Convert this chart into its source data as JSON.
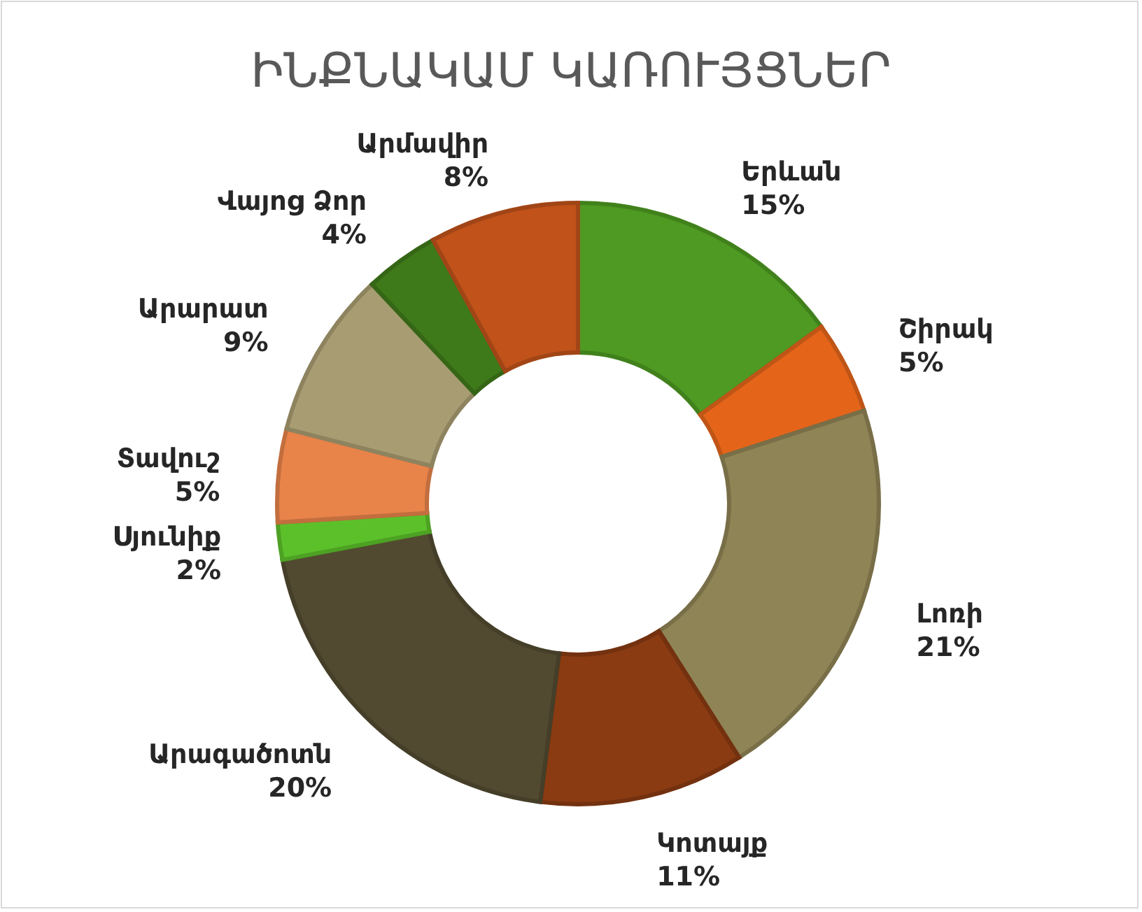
{
  "chart_data": {
    "type": "donut",
    "title": "ԻՆՔՆԱԿԱՄ ԿԱՌՈՒՅՑՆԵՐ",
    "categories": [
      "Երևան",
      "Շիրակ",
      "Լոռի",
      "Կոտայք",
      "Արագածոտն",
      "Սյունիք",
      "Տավուշ",
      "Արարատ",
      "Վայոց Ձոր",
      "Արմավիր"
    ],
    "values": [
      15,
      5,
      21,
      11,
      20,
      2,
      5,
      9,
      4,
      8
    ],
    "value_labels": [
      "15%",
      "5%",
      "21%",
      "11%",
      "20%",
      "2%",
      "5%",
      "9%",
      "4%",
      "8%"
    ],
    "colors": [
      "#4e9a22",
      "#e4651a",
      "#8f8455",
      "#8a3b12",
      "#524a30",
      "#5cc02a",
      "#e8834a",
      "#a89c72",
      "#3f7a1a",
      "#c0521a"
    ],
    "legend": false
  }
}
